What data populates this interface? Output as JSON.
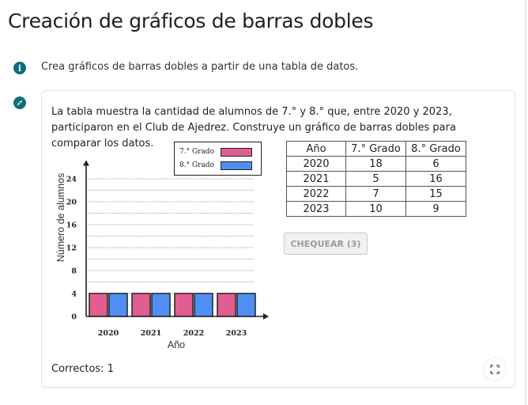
{
  "page": {
    "title": "Creación de gráficos de barras dobles",
    "info_text": "Crea gráficos de barras dobles a partir de una tabla de datos."
  },
  "problem": {
    "prompt": "La tabla muestra la cantidad de alumnos de 7.° y 8.° que, entre 2020 y 2023, participaron en el Club de Ajedrez. Construye un gráfico de barras dobles para comparar los datos."
  },
  "legend": {
    "entries": [
      {
        "label": "7.° Grado",
        "color": "#e15e92"
      },
      {
        "label": "8.° Grado",
        "color": "#4f8ff4"
      }
    ]
  },
  "table": {
    "headers": [
      "Año",
      "7.° Grado",
      "8.° Grado"
    ],
    "rows": [
      [
        "2020",
        "18",
        "6"
      ],
      [
        "2021",
        "5",
        "16"
      ],
      [
        "2022",
        "7",
        "15"
      ],
      [
        "2023",
        "10",
        "9"
      ]
    ]
  },
  "check_button": {
    "label": "CHEQUEAR (3)"
  },
  "status": {
    "text": "Correctos: 1"
  },
  "icons": {
    "info": "info-icon",
    "compass": "compass-icon",
    "expand": "expand-icon"
  },
  "colors": {
    "accent": "#0f6e78",
    "grade7": "#e15e92",
    "grade8": "#4f8ff4"
  },
  "chart_data": {
    "type": "bar",
    "categories": [
      "2020",
      "2021",
      "2022",
      "2023"
    ],
    "series": [
      {
        "name": "7.° Grado",
        "values": [
          4,
          4,
          4,
          4
        ]
      },
      {
        "name": "8.° Grado",
        "values": [
          4,
          4,
          4,
          4
        ]
      }
    ],
    "xlabel": "Año",
    "ylabel": "Número de alumnos",
    "yticks": [
      "0",
      "4",
      "8",
      "12",
      "16",
      "20",
      "24"
    ],
    "ylim": [
      0,
      26
    ],
    "grid": true
  }
}
